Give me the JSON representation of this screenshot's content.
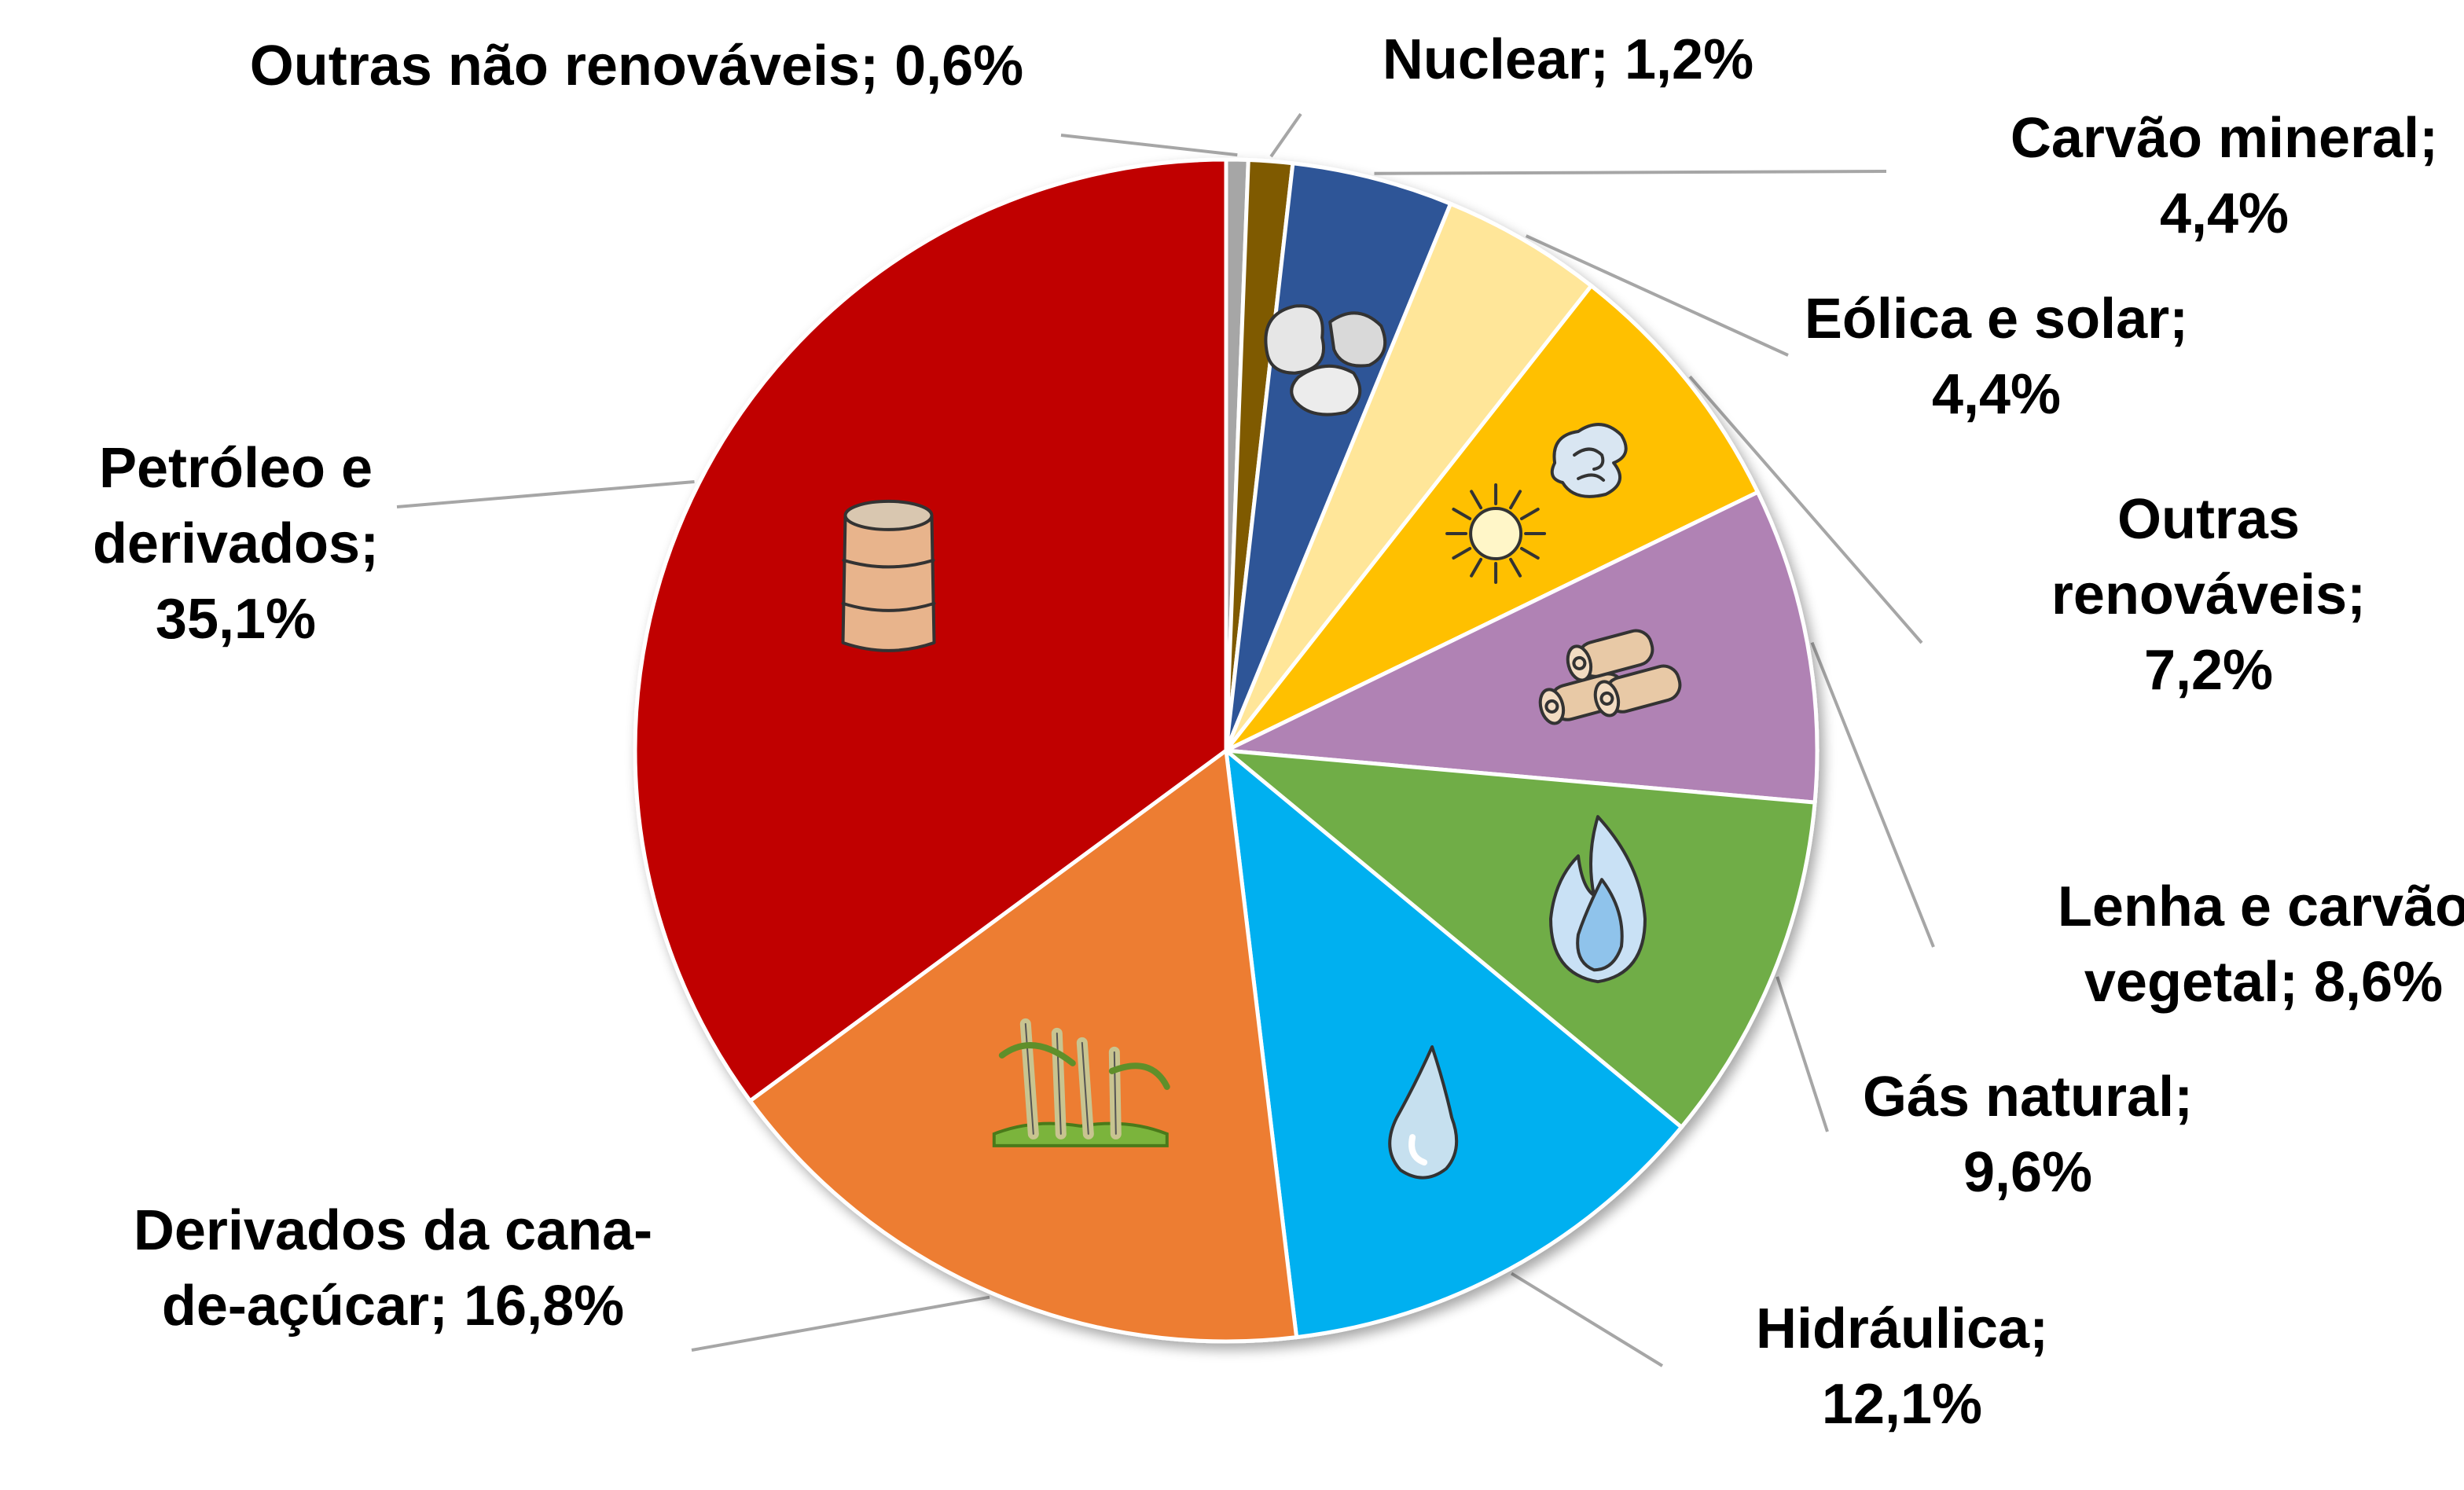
{
  "chart_data": {
    "type": "pie",
    "title": "",
    "legend": "none",
    "start_angle_deg": 0,
    "direction": "clockwise",
    "slices": [
      {
        "name": "Outras não renováveis",
        "value": 0.6,
        "color": "#a6a6a6",
        "icon": "",
        "label_lines": [
          "Outras não renováveis; 0,6%"
        ]
      },
      {
        "name": "Nuclear",
        "value": 1.2,
        "color": "#7f5a00",
        "icon": "",
        "label_lines": [
          "Nuclear; 1,2%"
        ]
      },
      {
        "name": "Carvão mineral",
        "value": 4.4,
        "color": "#2f5597",
        "icon": "coal-icon",
        "label_lines": [
          "Carvão mineral;",
          "4,4%"
        ]
      },
      {
        "name": "Eólica e solar",
        "value": 4.4,
        "color": "#ffe699",
        "icon": "",
        "label_lines": [
          "Eólica e solar;",
          "4,4%"
        ]
      },
      {
        "name": "Outras renováveis",
        "value": 7.2,
        "color": "#ffc000",
        "icon": "sun-wind-icon",
        "label_lines": [
          "Outras",
          "renováveis;",
          "7,2%"
        ]
      },
      {
        "name": "Lenha e carvão vegetal",
        "value": 8.6,
        "color": "#b082b4",
        "icon": "firewood-icon",
        "label_lines": [
          "Lenha e carvão",
          "vegetal; 8,6%"
        ]
      },
      {
        "name": "Gás natural",
        "value": 9.6,
        "color": "#70ad47",
        "icon": "flame-icon",
        "label_lines": [
          "Gás natural;",
          "9,6%"
        ]
      },
      {
        "name": "Hidráulica",
        "value": 12.1,
        "color": "#00b0f0",
        "icon": "water-drop-icon",
        "label_lines": [
          "Hidráulica;",
          "12,1%"
        ]
      },
      {
        "name": "Derivados da cana-de-açúcar",
        "value": 16.8,
        "color": "#ed7d31",
        "icon": "sugarcane-icon",
        "label_lines": [
          "Derivados da cana-",
          "de-açúcar; 16,8%"
        ]
      },
      {
        "name": "Petróleo e derivados",
        "value": 35.1,
        "color": "#c00000",
        "icon": "oil-barrel-icon",
        "label_lines": [
          "Petróleo e",
          "derivados;",
          "35,1%"
        ]
      }
    ]
  }
}
